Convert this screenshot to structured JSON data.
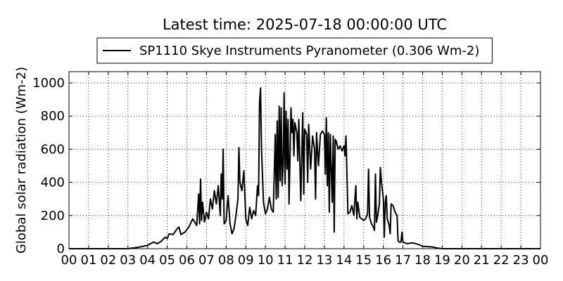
{
  "chart_data": {
    "type": "line",
    "title": "Latest time: 2025-07-18 00:00:00 UTC",
    "y_label": "Global solar radiation (Wm-2)",
    "legend": "upper center",
    "grid": true,
    "xlim": [
      0,
      24
    ],
    "ylim": [
      0,
      1068
    ],
    "xticks": [
      {
        "value": 0,
        "label": "00"
      },
      {
        "value": 1,
        "label": "01"
      },
      {
        "value": 2,
        "label": "02"
      },
      {
        "value": 3,
        "label": "03"
      },
      {
        "value": 4,
        "label": "04"
      },
      {
        "value": 5,
        "label": "05"
      },
      {
        "value": 6,
        "label": "06"
      },
      {
        "value": 7,
        "label": "07"
      },
      {
        "value": 8,
        "label": "08"
      },
      {
        "value": 9,
        "label": "09"
      },
      {
        "value": 10,
        "label": "10"
      },
      {
        "value": 11,
        "label": "11"
      },
      {
        "value": 12,
        "label": "12"
      },
      {
        "value": 13,
        "label": "13"
      },
      {
        "value": 14,
        "label": "14"
      },
      {
        "value": 15,
        "label": "15"
      },
      {
        "value": 16,
        "label": "16"
      },
      {
        "value": 17,
        "label": "17"
      },
      {
        "value": 18,
        "label": "18"
      },
      {
        "value": 19,
        "label": "19"
      },
      {
        "value": 20,
        "label": "20"
      },
      {
        "value": 21,
        "label": "21"
      },
      {
        "value": 22,
        "label": "22"
      },
      {
        "value": 23,
        "label": "23"
      },
      {
        "value": 24,
        "label": "00"
      }
    ],
    "yticks": [
      0,
      200,
      400,
      600,
      800,
      1000
    ],
    "series": [
      {
        "name": "SP1110 Skye Instruments Pyranometer (0.306 Wm-2)",
        "color": "#000000",
        "x": [
          0,
          1,
          2,
          3,
          3.5,
          4,
          4.3,
          4.5,
          4.7,
          4.9,
          5,
          5.1,
          5.3,
          5.5,
          5.6,
          5.7,
          5.9,
          6.1,
          6.3,
          6.5,
          6.6,
          6.65,
          6.7,
          6.75,
          6.8,
          6.9,
          7,
          7.1,
          7.2,
          7.3,
          7.4,
          7.5,
          7.6,
          7.7,
          7.75,
          7.8,
          7.85,
          7.9,
          8,
          8.1,
          8.2,
          8.3,
          8.4,
          8.5,
          8.6,
          8.65,
          8.7,
          8.8,
          8.9,
          9,
          9.1,
          9.2,
          9.3,
          9.4,
          9.5,
          9.6,
          9.65,
          9.7,
          9.75,
          9.8,
          9.9,
          10,
          10.1,
          10.2,
          10.3,
          10.4,
          10.5,
          10.55,
          10.6,
          10.65,
          10.7,
          10.75,
          10.8,
          10.85,
          10.9,
          10.95,
          11,
          11.05,
          11.1,
          11.15,
          11.2,
          11.3,
          11.35,
          11.4,
          11.45,
          11.5,
          11.6,
          11.65,
          11.7,
          11.8,
          11.9,
          11.95,
          12,
          12.1,
          12.15,
          12.2,
          12.3,
          12.4,
          12.5,
          12.55,
          12.6,
          12.7,
          12.8,
          12.9,
          13,
          13.05,
          13.1,
          13.15,
          13.2,
          13.25,
          13.3,
          13.4,
          13.45,
          13.5,
          13.55,
          13.6,
          13.7,
          13.8,
          13.9,
          14,
          14.05,
          14.1,
          14.2,
          14.3,
          14.4,
          14.5,
          14.6,
          14.65,
          14.7,
          14.8,
          14.9,
          15,
          15.1,
          15.2,
          15.25,
          15.3,
          15.4,
          15.5,
          15.55,
          15.6,
          15.65,
          15.7,
          15.8,
          15.85,
          15.9,
          16,
          16.05,
          16.1,
          16.15,
          16.2,
          16.3,
          16.35,
          16.4,
          16.5,
          16.6,
          16.7,
          16.75,
          16.8,
          16.9,
          16.95,
          17,
          17.2,
          17.5,
          17.8,
          18,
          18.5,
          18.8,
          19,
          24
        ],
        "values": [
          0,
          0,
          0,
          0,
          8,
          20,
          40,
          30,
          45,
          70,
          60,
          90,
          85,
          120,
          130,
          85,
          100,
          130,
          180,
          140,
          330,
          150,
          420,
          170,
          280,
          160,
          220,
          180,
          300,
          240,
          350,
          270,
          380,
          200,
          450,
          300,
          600,
          150,
          170,
          320,
          150,
          90,
          120,
          200,
          300,
          610,
          400,
          350,
          470,
          180,
          140,
          250,
          180,
          230,
          200,
          380,
          320,
          880,
          970,
          600,
          280,
          210,
          240,
          310,
          240,
          220,
          690,
          300,
          770,
          310,
          860,
          410,
          850,
          380,
          500,
          940,
          390,
          830,
          480,
          780,
          270,
          850,
          700,
          780,
          560,
          760,
          700,
          530,
          780,
          290,
          820,
          330,
          720,
          690,
          400,
          750,
          480,
          680,
          600,
          300,
          700,
          500,
          690,
          710,
          690,
          450,
          790,
          380,
          700,
          220,
          690,
          280,
          680,
          100,
          660,
          650,
          600,
          620,
          590,
          620,
          560,
          680,
          210,
          220,
          260,
          200,
          380,
          180,
          280,
          190,
          180,
          170,
          180,
          210,
          480,
          190,
          150,
          130,
          110,
          450,
          160,
          190,
          270,
          490,
          410,
          300,
          70,
          280,
          320,
          180,
          140,
          90,
          270,
          260,
          220,
          200,
          50,
          40,
          40,
          100,
          40,
          30,
          35,
          25,
          15,
          10,
          3,
          0,
          0
        ]
      }
    ]
  }
}
